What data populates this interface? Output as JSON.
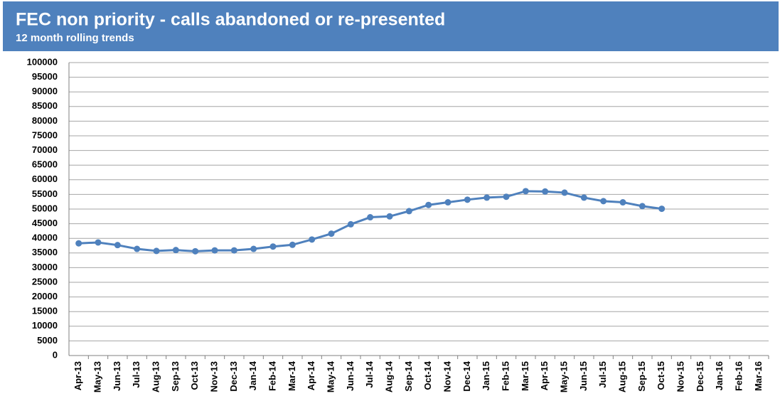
{
  "chart_data": {
    "type": "line",
    "title": "FEC non priority - calls abandoned or re-presented",
    "subtitle": "12 month rolling trends",
    "categories": [
      "Apr-13",
      "May-13",
      "Jun-13",
      "Jul-13",
      "Aug-13",
      "Sep-13",
      "Oct-13",
      "Nov-13",
      "Dec-13",
      "Jan-14",
      "Feb-14",
      "Mar-14",
      "Apr-14",
      "May-14",
      "Jun-14",
      "Jul-14",
      "Aug-14",
      "Sep-14",
      "Oct-14",
      "Nov-14",
      "Dec-14",
      "Jan-15",
      "Feb-15",
      "Mar-15",
      "Apr-15",
      "May-15",
      "Jun-15",
      "Jul-15",
      "Aug-15",
      "Sep-15",
      "Oct-15",
      "Nov-15",
      "Dec-15",
      "Jan-16",
      "Feb-16",
      "Mar-16"
    ],
    "values": [
      38300,
      38600,
      37700,
      36400,
      35700,
      36000,
      35600,
      35900,
      35900,
      36400,
      37200,
      37800,
      39600,
      41600,
      44800,
      47200,
      47500,
      49300,
      51400,
      52300,
      53200,
      53900,
      54200,
      56100,
      56000,
      55600,
      53900,
      52700,
      52300,
      51000,
      50100,
      null,
      null,
      null,
      null,
      null
    ],
    "color": "#4f81bd",
    "ylim": [
      0,
      100000
    ],
    "yticks": [
      0,
      5000,
      10000,
      15000,
      20000,
      25000,
      30000,
      35000,
      40000,
      45000,
      50000,
      55000,
      60000,
      65000,
      70000,
      75000,
      80000,
      85000,
      90000,
      95000,
      100000
    ],
    "grid": true
  }
}
